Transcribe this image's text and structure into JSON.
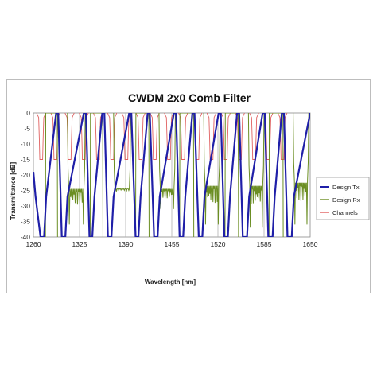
{
  "chart_data": {
    "type": "line",
    "title": "CWDM 2x0 Comb Filter",
    "xlabel": "Wavelength [nm]",
    "ylabel": "Transmittance [dB]",
    "xlim": [
      1260,
      1650
    ],
    "ylim": [
      -40,
      0
    ],
    "xticks": [
      1260,
      1325,
      1390,
      1455,
      1520,
      1585,
      1650
    ],
    "xtick_labels": [
      "1260",
      "1325",
      "1390",
      "1455",
      "1520",
      "1585",
      "1650"
    ],
    "yticks": [
      0,
      -5,
      -10,
      -15,
      -20,
      -25,
      -30,
      -35,
      -40
    ],
    "ytick_labels": [
      "0",
      "-5",
      "-10",
      "-15",
      "-20",
      "-25",
      "-30",
      "-35",
      "-40"
    ],
    "grid": "vertical",
    "legend_position": "right",
    "series": [
      {
        "name": "Design Tx",
        "color": "#1f1fa8",
        "description_points": "x in nm, y in dB",
        "x": [
          1260,
          1263,
          1270,
          1275,
          1278,
          1292,
          1295,
          1300,
          1305,
          1308,
          1331,
          1334,
          1339,
          1343,
          1346,
          1357,
          1360,
          1365,
          1370,
          1373,
          1395,
          1398,
          1404,
          1408,
          1411,
          1421,
          1424,
          1430,
          1435,
          1438,
          1458,
          1461,
          1466,
          1471,
          1474,
          1484,
          1487,
          1493,
          1498,
          1501,
          1521,
          1524,
          1529,
          1534,
          1537,
          1547,
          1550,
          1555,
          1561,
          1564,
          1583,
          1586,
          1591,
          1597,
          1600,
          1610,
          1613,
          1618,
          1624,
          1627,
          1650
        ],
        "y": [
          -19,
          -27,
          -40,
          -40,
          -27,
          0,
          0,
          -40,
          -40,
          -27,
          0,
          0,
          -40,
          -40,
          -27,
          0,
          0,
          -40,
          -40,
          -27,
          0,
          0,
          -40,
          -40,
          -27,
          0,
          0,
          -40,
          -40,
          -27,
          0,
          0,
          -40,
          -40,
          -27,
          0,
          0,
          -40,
          -40,
          -27,
          0,
          0,
          -40,
          -40,
          -27,
          0,
          0,
          -40,
          -40,
          -27,
          0,
          0,
          -40,
          -40,
          -27,
          0,
          0,
          -40,
          -40,
          -27,
          0
        ]
      },
      {
        "name": "Design Rx",
        "color": "#6b8e23",
        "passbands": [
          {
            "x_start": 1277,
            "x_end": 1294,
            "floor": -40
          },
          {
            "x_start": 1308,
            "x_end": 1333,
            "floor": -24,
            "ripple_min": -38
          },
          {
            "x_start": 1340,
            "x_end": 1358,
            "floor": -40
          },
          {
            "x_start": 1373,
            "x_end": 1397,
            "floor": -24,
            "ripple_min": -27
          },
          {
            "x_start": 1404,
            "x_end": 1423,
            "floor": -40
          },
          {
            "x_start": 1437,
            "x_end": 1460,
            "floor": -24,
            "ripple_min": -33
          },
          {
            "x_start": 1466,
            "x_end": 1486,
            "floor": -40
          },
          {
            "x_start": 1500,
            "x_end": 1523,
            "floor": -23,
            "ripple_min": -38
          },
          {
            "x_start": 1530,
            "x_end": 1549,
            "floor": -40
          },
          {
            "x_start": 1563,
            "x_end": 1585,
            "floor": -23,
            "ripple_min": -39
          },
          {
            "x_start": 1592,
            "x_end": 1612,
            "floor": -40
          },
          {
            "x_start": 1626,
            "x_end": 1648,
            "floor": -22,
            "ripple_min": -38
          }
        ]
      },
      {
        "name": "Channels",
        "color": "#e06060",
        "center_wavelengths": [
          1271,
          1291,
          1311,
          1331,
          1351,
          1371,
          1391,
          1411,
          1431,
          1451,
          1471,
          1491,
          1511,
          1531,
          1551,
          1571,
          1591,
          1611
        ],
        "top_width_nm": 13,
        "bottom_width_nm": 4,
        "depth": -15
      }
    ]
  }
}
